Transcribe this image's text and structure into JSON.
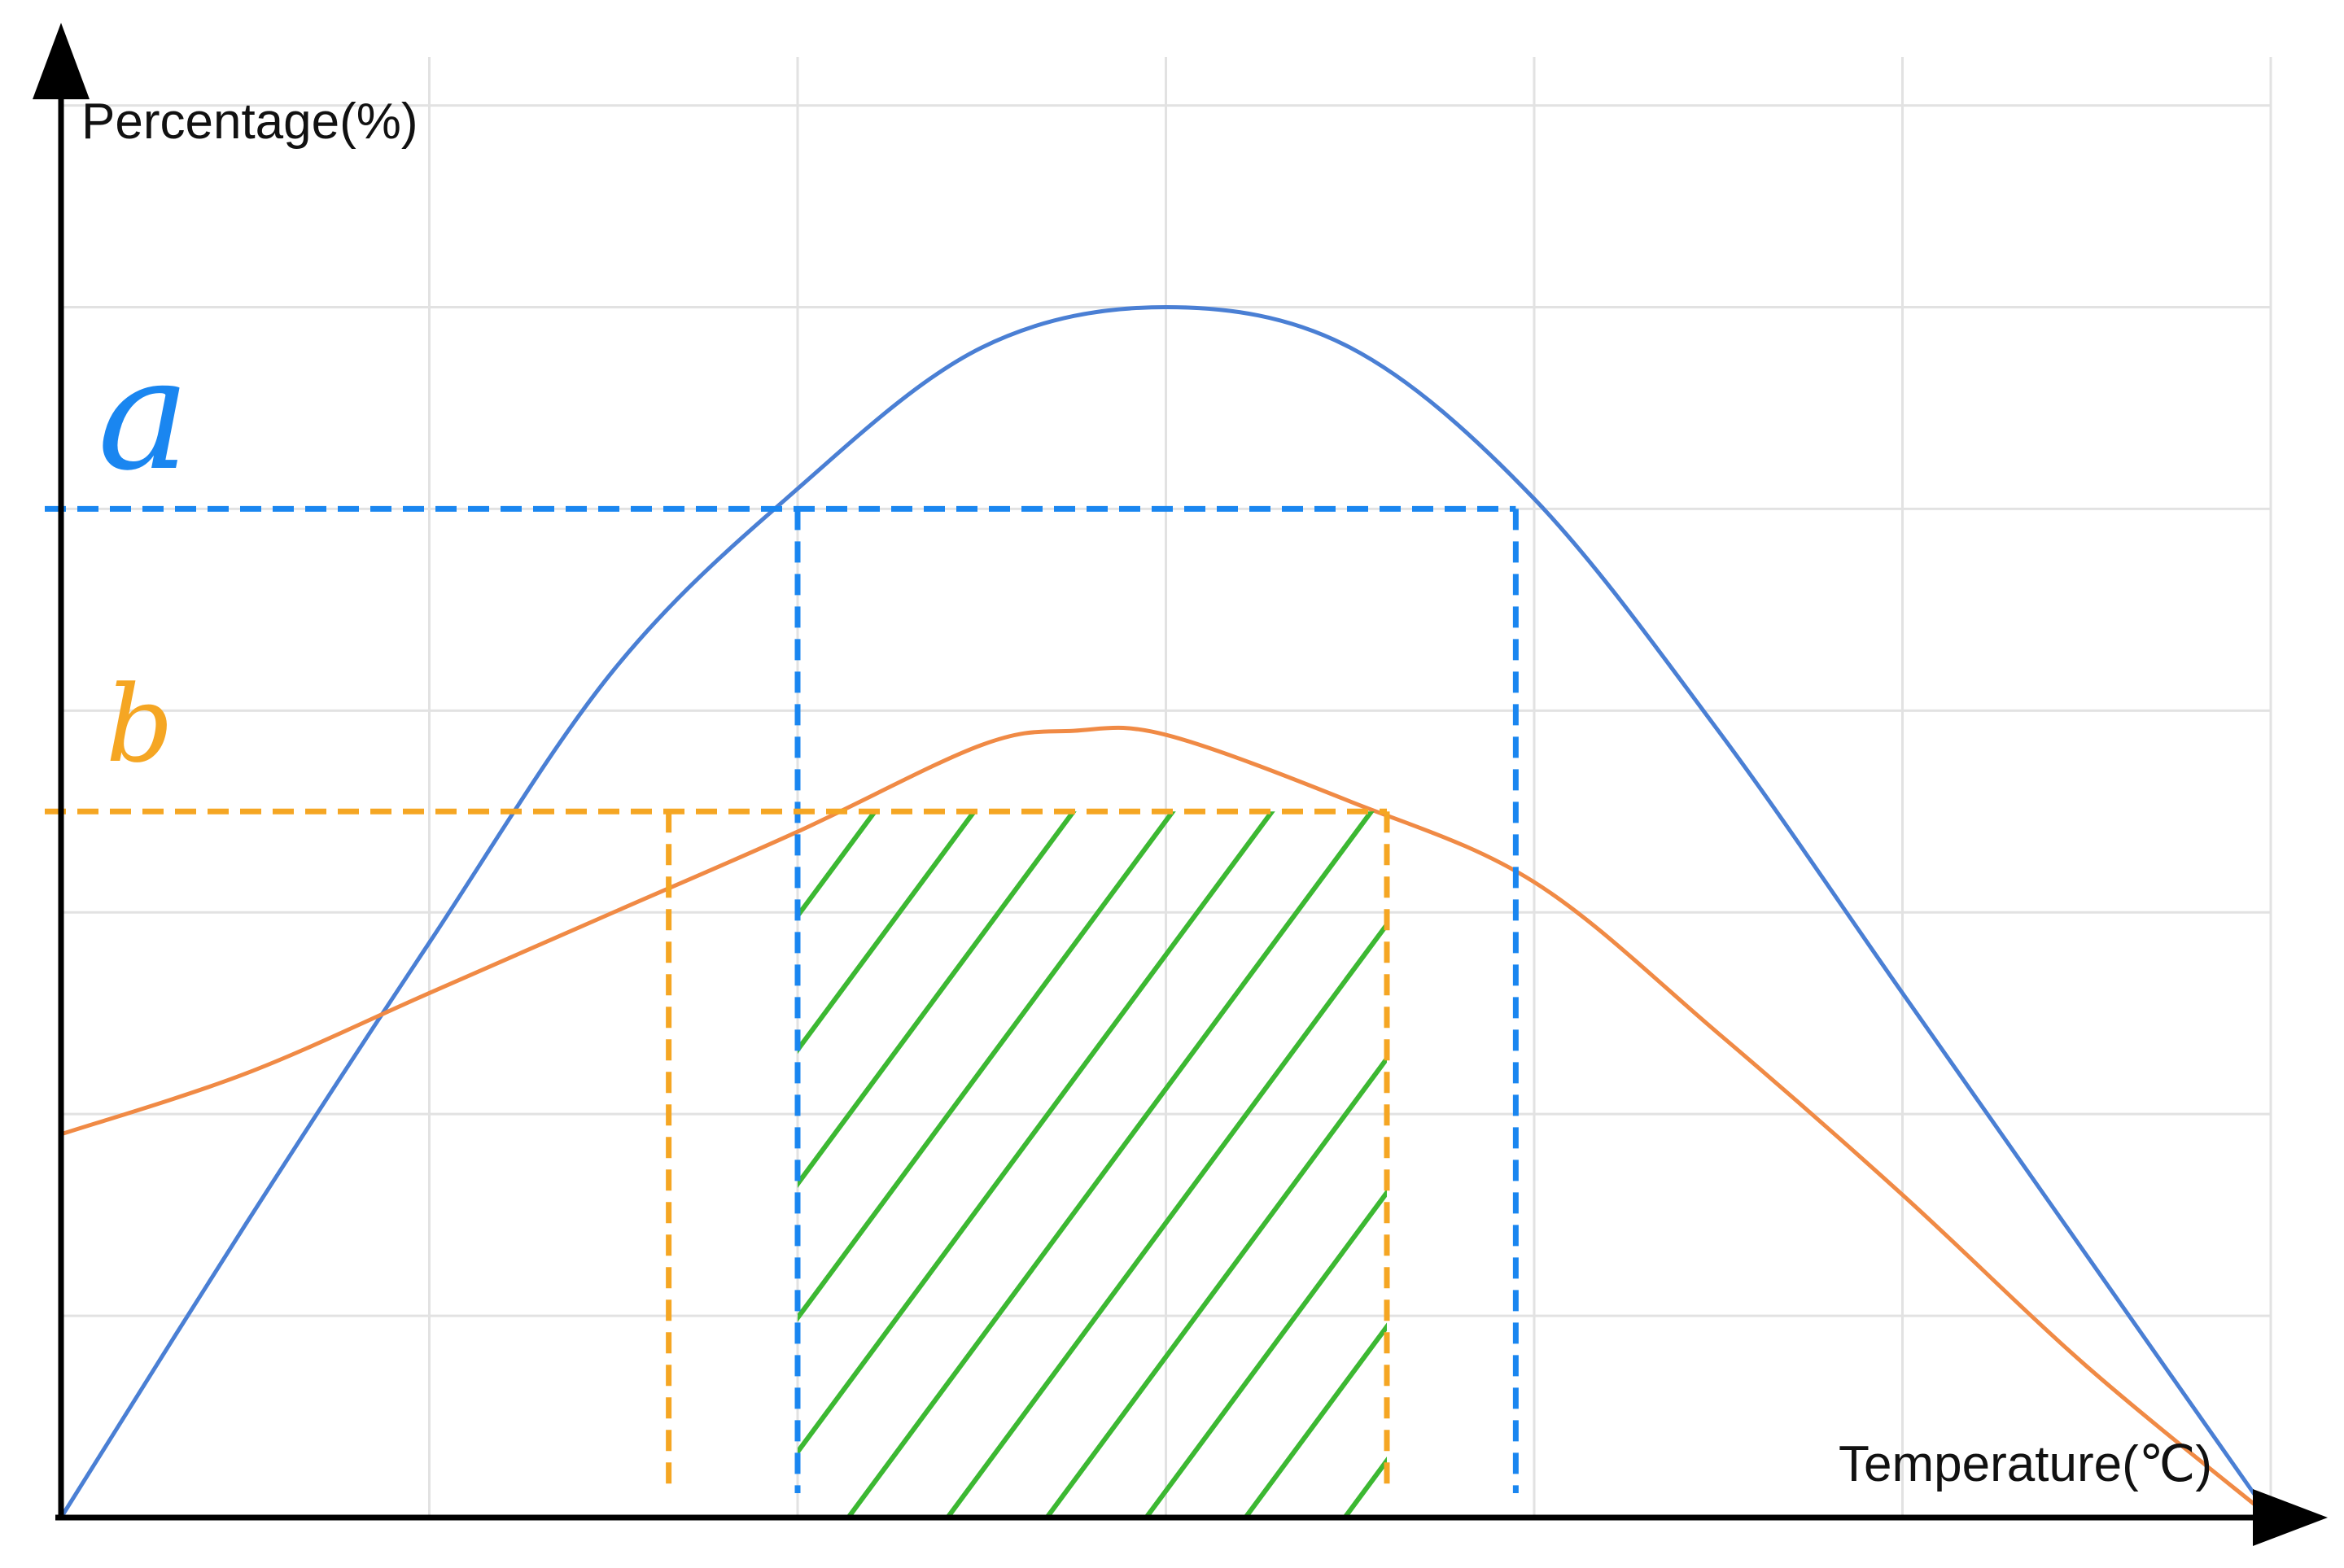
{
  "chart_data": {
    "type": "line",
    "title": "",
    "xlabel": "Temperature(℃)",
    "ylabel": "Percentage(%)",
    "grid": true,
    "x_ticks_labeled": false,
    "y_ticks_labeled": false,
    "xlim": [
      0,
      6
    ],
    "ylim": [
      0,
      7.2
    ],
    "series": [
      {
        "name": "",
        "color": "#4a7fd4",
        "x": [
          0,
          0.5,
          1,
          1.5,
          2,
          2.5,
          3,
          3.5,
          4,
          4.5,
          5,
          5.5,
          6
        ],
        "values": [
          0,
          1.45,
          2.85,
          4.2,
          5.1,
          5.8,
          6.0,
          5.8,
          5.05,
          3.9,
          2.6,
          1.3,
          0
        ]
      },
      {
        "name": "",
        "color": "#f08a45",
        "x": [
          0,
          0.5,
          1,
          1.5,
          2,
          2.5,
          2.75,
          3,
          3.5,
          4,
          4.5,
          5,
          5.5,
          6
        ],
        "values": [
          1.9,
          2.2,
          2.6,
          3.0,
          3.4,
          3.83,
          3.9,
          3.88,
          3.55,
          3.15,
          2.4,
          1.6,
          0.75,
          0
        ]
      }
    ],
    "reference_lines": [
      {
        "label": "a",
        "color": "#1a86f0",
        "y": 5.0,
        "x_left": 2.0,
        "x_right": 3.95
      },
      {
        "label": "b",
        "color": "#f5a623",
        "y": 3.5,
        "x_left": 1.65,
        "x_right": 3.6
      }
    ],
    "highlighted_region": {
      "color": "#3cb832",
      "pattern": "diagonal-hatch",
      "x_range": [
        2.0,
        3.6
      ],
      "y_range": [
        0,
        3.5
      ]
    },
    "legend": "none"
  }
}
